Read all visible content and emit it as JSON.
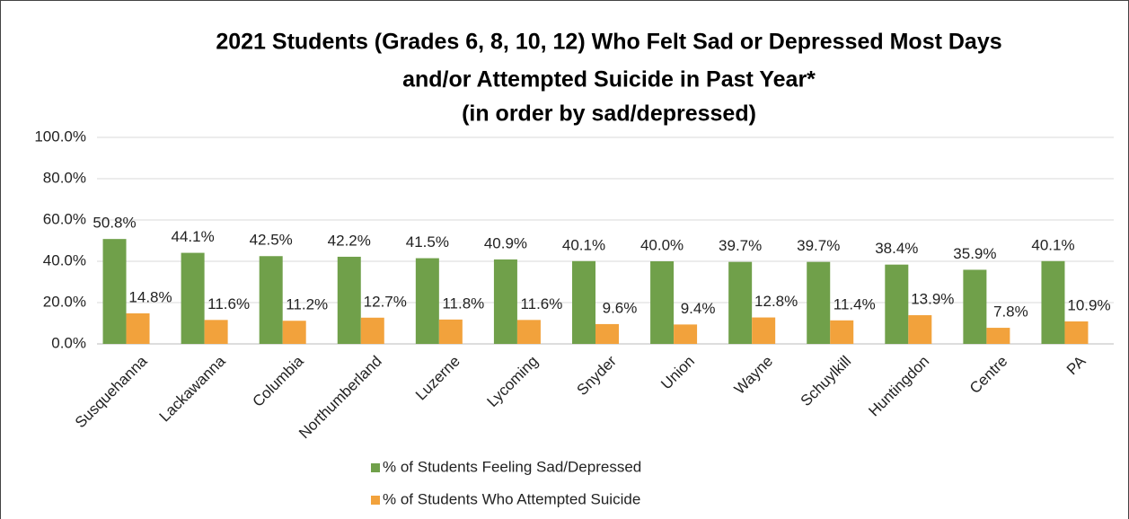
{
  "chart_data": {
    "type": "bar",
    "title": [
      "2021 Students (Grades 6, 8, 10, 12) Who Felt Sad or Depressed Most Days",
      "and/or Attempted Suicide in Past Year*",
      "(in order by sad/depressed)"
    ],
    "categories": [
      "Susquehanna",
      "Lackawanna",
      "Columbia",
      "Northumberland",
      "Luzerne",
      "Lycoming",
      "Snyder",
      "Union",
      "Wayne",
      "Schuylkill",
      "Huntingdon",
      "Centre",
      "PA"
    ],
    "series": [
      {
        "name": "% of Students Feeling Sad/Depressed",
        "color": "#70a04a",
        "values": [
          50.8,
          44.1,
          42.5,
          42.2,
          41.5,
          40.9,
          40.1,
          40.0,
          39.7,
          39.7,
          38.4,
          35.9,
          40.1
        ],
        "value_labels": [
          "50.8%",
          "44.1%",
          "42.5%",
          "42.2%",
          "41.5%",
          "40.9%",
          "40.1%",
          "40.0%",
          "39.7%",
          "39.7%",
          "38.4%",
          "35.9%",
          "40.1%"
        ]
      },
      {
        "name": "% of Students Who Attempted Suicide",
        "color": "#f2a23c",
        "values": [
          14.8,
          11.6,
          11.2,
          12.7,
          11.8,
          11.6,
          9.6,
          9.4,
          12.8,
          11.4,
          13.9,
          7.8,
          10.9
        ],
        "value_labels": [
          "14.8%",
          "11.6%",
          "11.2%",
          "12.7%",
          "11.8%",
          "11.6%",
          "9.6%",
          "9.4%",
          "12.8%",
          "11.4%",
          "13.9%",
          "7.8%",
          "10.9%"
        ]
      }
    ],
    "ylim": [
      0,
      100
    ],
    "yticks": [
      {
        "value": 0,
        "label": "0.0%"
      },
      {
        "value": 20,
        "label": "20.0%"
      },
      {
        "value": 40,
        "label": "40.0%"
      },
      {
        "value": 60,
        "label": "60.0%"
      },
      {
        "value": 80,
        "label": "80.0%"
      },
      {
        "value": 100,
        "label": "100.0%"
      }
    ],
    "grid": true,
    "legend": "bottom"
  }
}
